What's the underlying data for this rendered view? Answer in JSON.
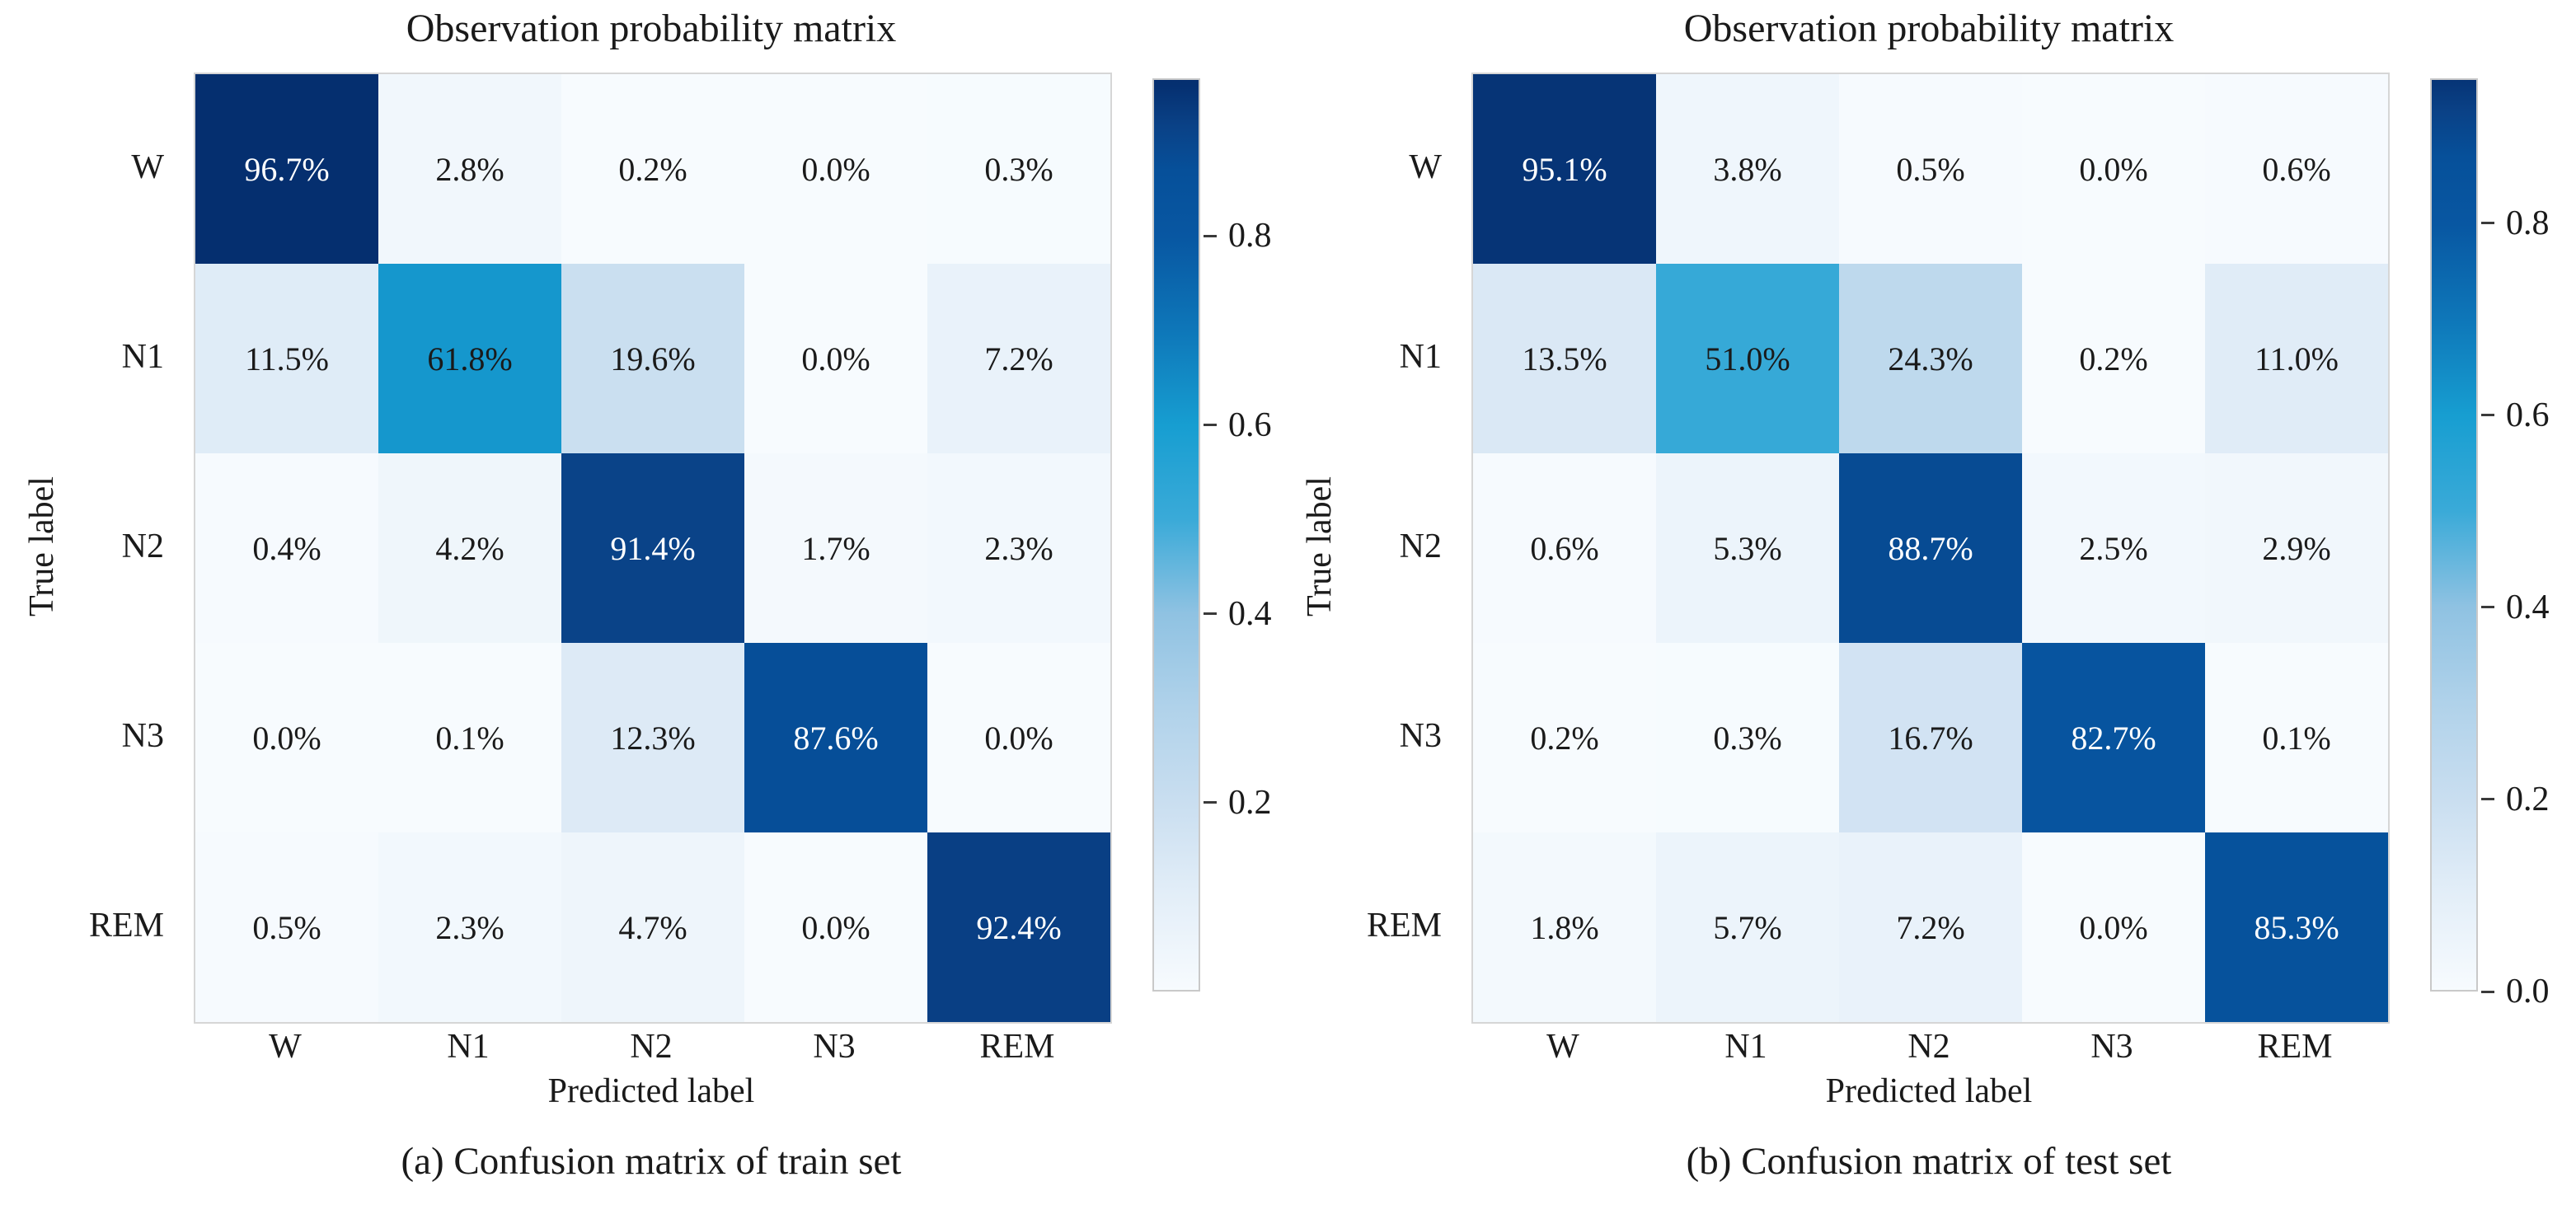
{
  "figure": {
    "background": "#ffffff",
    "title_color": "#1a1a1a",
    "cell_text_dark": "#1a1a1a",
    "cell_text_light": "#ffffff",
    "light_text_threshold": 0.7
  },
  "colormap": {
    "stops": [
      [
        0.0,
        "#f7fbfe"
      ],
      [
        0.1,
        "#e3eef8"
      ],
      [
        0.2,
        "#c9def0"
      ],
      [
        0.3,
        "#b0d2ea"
      ],
      [
        0.4,
        "#8fc2e2"
      ],
      [
        0.5,
        "#3aaad8"
      ],
      [
        0.6,
        "#179ed1"
      ],
      [
        0.7,
        "#0e77b9"
      ],
      [
        0.8,
        "#0857a2"
      ],
      [
        0.87,
        "#06509a"
      ],
      [
        0.92,
        "#0a4186"
      ],
      [
        0.96,
        "#053071"
      ],
      [
        1.0,
        "#042c67"
      ]
    ]
  },
  "chart_data": [
    {
      "type": "heatmap",
      "title": "Observation probability matrix",
      "xlabel": "Predicted label",
      "ylabel": "True label",
      "caption": "(a) Confusion matrix of train set",
      "categories": [
        "W",
        "N1",
        "N2",
        "N3",
        "REM"
      ],
      "values_percent": [
        [
          96.7,
          2.8,
          0.2,
          0.0,
          0.3
        ],
        [
          11.5,
          61.8,
          19.6,
          0.0,
          7.2
        ],
        [
          0.4,
          4.2,
          91.4,
          1.7,
          2.3
        ],
        [
          0.0,
          0.1,
          12.3,
          87.6,
          0.0
        ],
        [
          0.5,
          2.3,
          4.7,
          0.0,
          92.4
        ]
      ],
      "vmin": 0.0,
      "vmax": 0.967,
      "colorbar_ticks": [
        {
          "value": 0.8,
          "label": "0.8"
        },
        {
          "value": 0.6,
          "label": "0.6"
        },
        {
          "value": 0.4,
          "label": "0.4"
        },
        {
          "value": 0.2,
          "label": "0.2"
        }
      ]
    },
    {
      "type": "heatmap",
      "title": "Observation probability matrix",
      "xlabel": "Predicted label",
      "ylabel": "True label",
      "caption": "(b) Confusion matrix of test set",
      "categories": [
        "W",
        "N1",
        "N2",
        "N3",
        "REM"
      ],
      "values_percent": [
        [
          95.1,
          3.8,
          0.5,
          0.0,
          0.6
        ],
        [
          13.5,
          51.0,
          24.3,
          0.2,
          11.0
        ],
        [
          0.6,
          5.3,
          88.7,
          2.5,
          2.9
        ],
        [
          0.2,
          0.3,
          16.7,
          82.7,
          0.1
        ],
        [
          1.8,
          5.7,
          7.2,
          0.0,
          85.3
        ]
      ],
      "vmin": 0.0,
      "vmax": 0.951,
      "colorbar_ticks": [
        {
          "value": 0.8,
          "label": "0.8"
        },
        {
          "value": 0.6,
          "label": "0.6"
        },
        {
          "value": 0.4,
          "label": "0.4"
        },
        {
          "value": 0.2,
          "label": "0.2"
        },
        {
          "value": 0.0,
          "label": "0.0"
        }
      ]
    }
  ]
}
